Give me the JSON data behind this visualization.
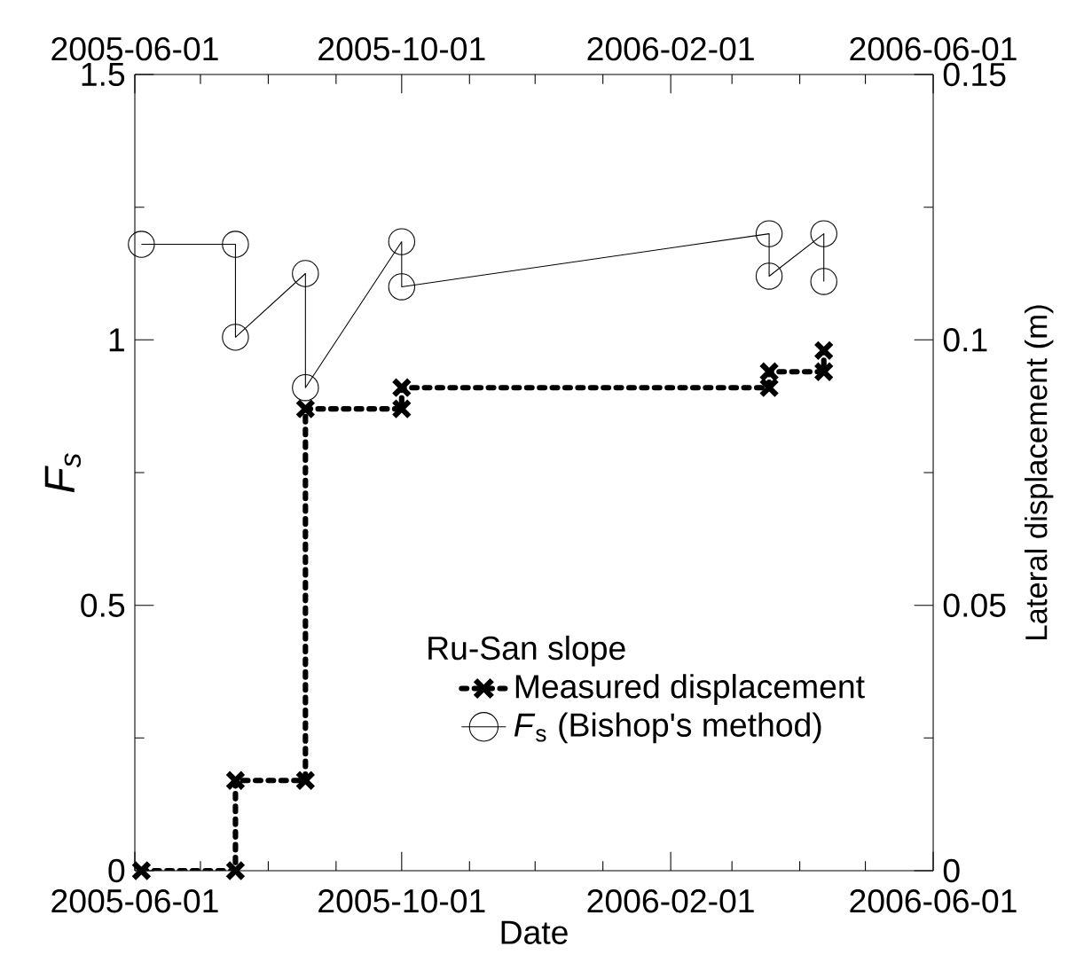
{
  "chart_data": {
    "type": "line",
    "x": [
      "2005-06-04",
      "2005-07-17",
      "2005-07-17",
      "2005-08-18",
      "2005-08-18",
      "2005-10-01",
      "2005-10-01",
      "2006-03-18",
      "2006-03-18",
      "2006-04-12",
      "2006-04-12"
    ],
    "series": [
      {
        "name": "Measured displacement",
        "color": "#000000",
        "axis": "y2",
        "marker": "cross",
        "line_style": "dotted",
        "values": [
          0,
          0,
          0.017,
          0.017,
          0.087,
          0.087,
          0.091,
          0.091,
          0.094,
          0.094,
          0.098
        ]
      },
      {
        "name": "*F*$_{s}$ (Bishop's method)",
        "color": "#000000",
        "marker": "circle",
        "line_style": "solid",
        "values": [
          1.18,
          1.18,
          1.005,
          1.125,
          0.91,
          1.185,
          1.1,
          1.2,
          1.12,
          1.2,
          1.11
        ]
      }
    ],
    "xlabel": "Date",
    "ylabel": "F$_{s}$",
    "y2label": "Lateral displacement (m)",
    "legend_title": "Ru-San slope",
    "legend": "bottom right",
    "xlim": [
      "2005-06-01",
      "2006-06-01"
    ],
    "xticks": [
      {
        "value": "2005-06-01",
        "label": "2005-06-01"
      },
      {
        "value": "2005-07-01",
        "label": null
      },
      {
        "value": "2005-08-01",
        "label": null
      },
      {
        "value": "2005-09-01",
        "label": null
      },
      {
        "value": "2005-10-01",
        "label": "2005-10-01"
      },
      {
        "value": "2005-11-01",
        "label": null
      },
      {
        "value": "2005-12-01",
        "label": null
      },
      {
        "value": "2006-01-01",
        "label": null
      },
      {
        "value": "2006-02-01",
        "label": "2006-02-01"
      },
      {
        "value": "2006-03-01",
        "label": null
      },
      {
        "value": "2006-04-01",
        "label": null
      },
      {
        "value": "2006-05-01",
        "label": null
      },
      {
        "value": "2006-06-01",
        "label": "2006-06-01"
      }
    ],
    "x2lim": [
      "2005-06-01",
      "2006-06-01"
    ],
    "x2ticks": [
      {
        "value": "2005-06-01",
        "label": "2005-06-01"
      },
      {
        "value": "2005-07-01",
        "label": null
      },
      {
        "value": "2005-08-01",
        "label": null
      },
      {
        "value": "2005-09-01",
        "label": null
      },
      {
        "value": "2005-10-01",
        "label": "2005-10-01"
      },
      {
        "value": "2005-11-01",
        "label": null
      },
      {
        "value": "2005-12-01",
        "label": null
      },
      {
        "value": "2006-01-01",
        "label": null
      },
      {
        "value": "2006-02-01",
        "label": "2006-02-01"
      },
      {
        "value": "2006-03-01",
        "label": null
      },
      {
        "value": "2006-04-01",
        "label": null
      },
      {
        "value": "2006-05-01",
        "label": null
      },
      {
        "value": "2006-06-01",
        "label": "2006-06-01"
      }
    ],
    "ylim": [
      0,
      1.5
    ],
    "yticks": [
      0,
      {
        "value": 0.25,
        "label": null
      },
      0.5,
      {
        "value": 0.75,
        "label": null
      },
      1,
      {
        "value": 1.25,
        "label": null
      },
      1.5
    ],
    "y2lim": [
      0,
      0.15
    ],
    "y2ticks": [
      0,
      {
        "value": 0.025,
        "label": null
      },
      0.05,
      {
        "value": 0.075,
        "label": null
      },
      0.1,
      {
        "value": 0.125,
        "label": null
      },
      0.15
    ],
    "grid": false
  }
}
